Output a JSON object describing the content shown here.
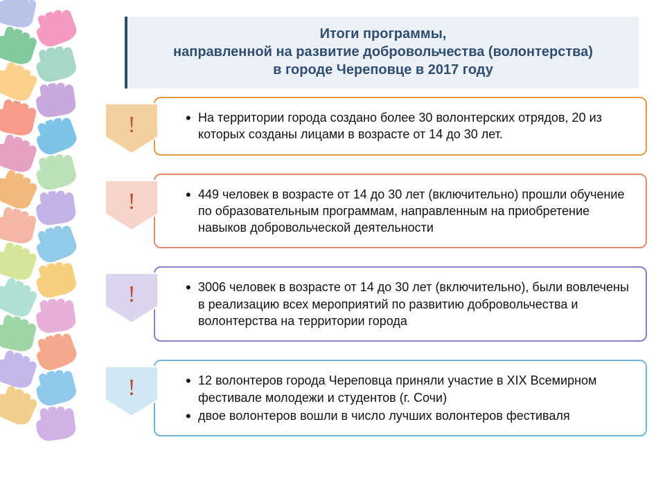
{
  "header": {
    "line1": "Итоги программы,",
    "line2": "направленной на развитие добровольчества (волонтерства)",
    "line3": "в городе Череповце в 2017 году",
    "bg": "#ecf1f8",
    "accent": "#2f4d71",
    "fontsize": 20
  },
  "items": [
    {
      "chevron_fill": "#f3d09f",
      "chevron_stroke": "#ffffff",
      "border_color": "#e39a3c",
      "bang_color": "#c1573d",
      "bullets": [
        "На территории города создано более 30 волонтерских отрядов, 20 из которых созданы лицами в возрасте от 14 до 30 лет."
      ]
    },
    {
      "chevron_fill": "#f6d4c9",
      "chevron_stroke": "#ffffff",
      "border_color": "#df8a6a",
      "bang_color": "#bf4b35",
      "bullets": [
        "449 человек в возрасте от 14 до 30 лет (включительно) прошли обучение по образовательным программам, направленным на приобретение навыков добровольческой деятельности"
      ]
    },
    {
      "chevron_fill": "#dcd5f0",
      "chevron_stroke": "#ffffff",
      "border_color": "#8f7bc6",
      "bang_color": "#bf4b35",
      "bullets": [
        "3006 человек в возрасте от 14 до 30 лет (включительно), были вовлечены в реализацию всех мероприятий по развитию добровольчества и волонтерства на территории города"
      ]
    },
    {
      "chevron_fill": "#cfe8f4",
      "chevron_stroke": "#ffffff",
      "border_color": "#6db4d8",
      "bang_color": "#bf4b35",
      "bullets": [
        "12 волонтеров города Череповца приняли участие в XIX Всемирном фестивале молодежи и студентов (г. Сочи)",
        "двое волонтеров вошли в число лучших волонтеров фестиваля"
      ]
    }
  ],
  "item_fontsize": 18,
  "hands": {
    "colors": [
      "#b9c5e8",
      "#f49ac1",
      "#82ca9c",
      "#a7d8c7",
      "#fdd08b",
      "#c8a9de",
      "#f79c8a",
      "#7ec4e8",
      "#e5a1c3",
      "#bde2b9",
      "#f1b97c",
      "#c2b4e6",
      "#f5b6a6",
      "#91cbe8",
      "#d6e59a",
      "#f6d07e",
      "#b0e0d3",
      "#e8b0d8",
      "#9fd6a8",
      "#f4a88c",
      "#c4b7ea",
      "#8fc9eb",
      "#f2cf8c",
      "#d0b3e4"
    ]
  }
}
